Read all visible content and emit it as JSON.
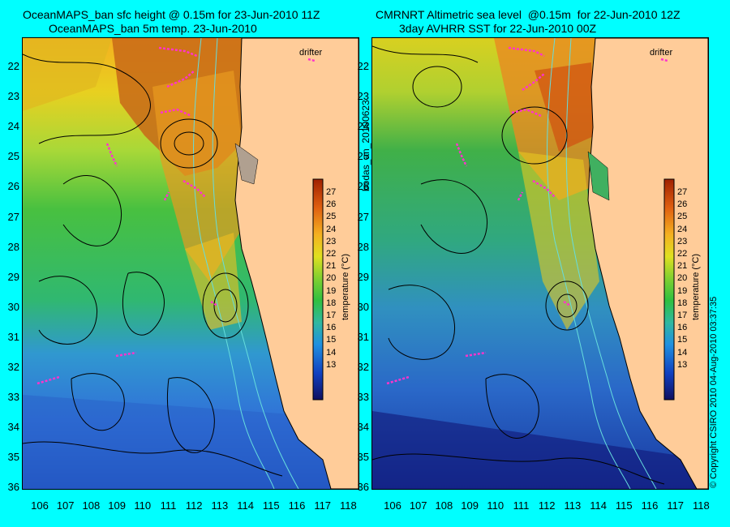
{
  "left_panel": {
    "title_line1": "OceanMAPS_ban sfc height @ 0.15m for 23-Jun-2010 11Z",
    "title_line2": "OceanMAPS_ban 5m temp. 23-Jun-2010",
    "drifter_label": "drifter"
  },
  "right_panel": {
    "title_line1": "CMRNRT Altimetric sea level  @0.15m  for 22-Jun-2010 12Z",
    "title_line2": "3day AVHRR SST for 22-Jun-2010 00Z",
    "drifter_label": "drifter"
  },
  "latitudes": [
    "22",
    "23",
    "24",
    "25",
    "26",
    "27",
    "28",
    "29",
    "30",
    "31",
    "32",
    "33",
    "34",
    "35",
    "36"
  ],
  "longitudes": [
    "106",
    "107",
    "108",
    "109",
    "110",
    "111",
    "112",
    "113",
    "114",
    "115",
    "116",
    "117",
    "118"
  ],
  "colorbar": {
    "label": "temperature (°C)",
    "ticks": [
      "27",
      "26",
      "25",
      "24",
      "23",
      "22",
      "21",
      "20",
      "19",
      "18",
      "17",
      "16",
      "15",
      "14",
      "13"
    ]
  },
  "middle_label": "bodas_an_20100623",
  "copyright": "© Copyright CSIRO 2010   04-Aug-2010 03:37:35",
  "colors": {
    "background": "#00ffff",
    "land": "#ffcc99",
    "drifter": "#ff33cc",
    "contour": "#000000",
    "isobath": "#66dddd"
  }
}
